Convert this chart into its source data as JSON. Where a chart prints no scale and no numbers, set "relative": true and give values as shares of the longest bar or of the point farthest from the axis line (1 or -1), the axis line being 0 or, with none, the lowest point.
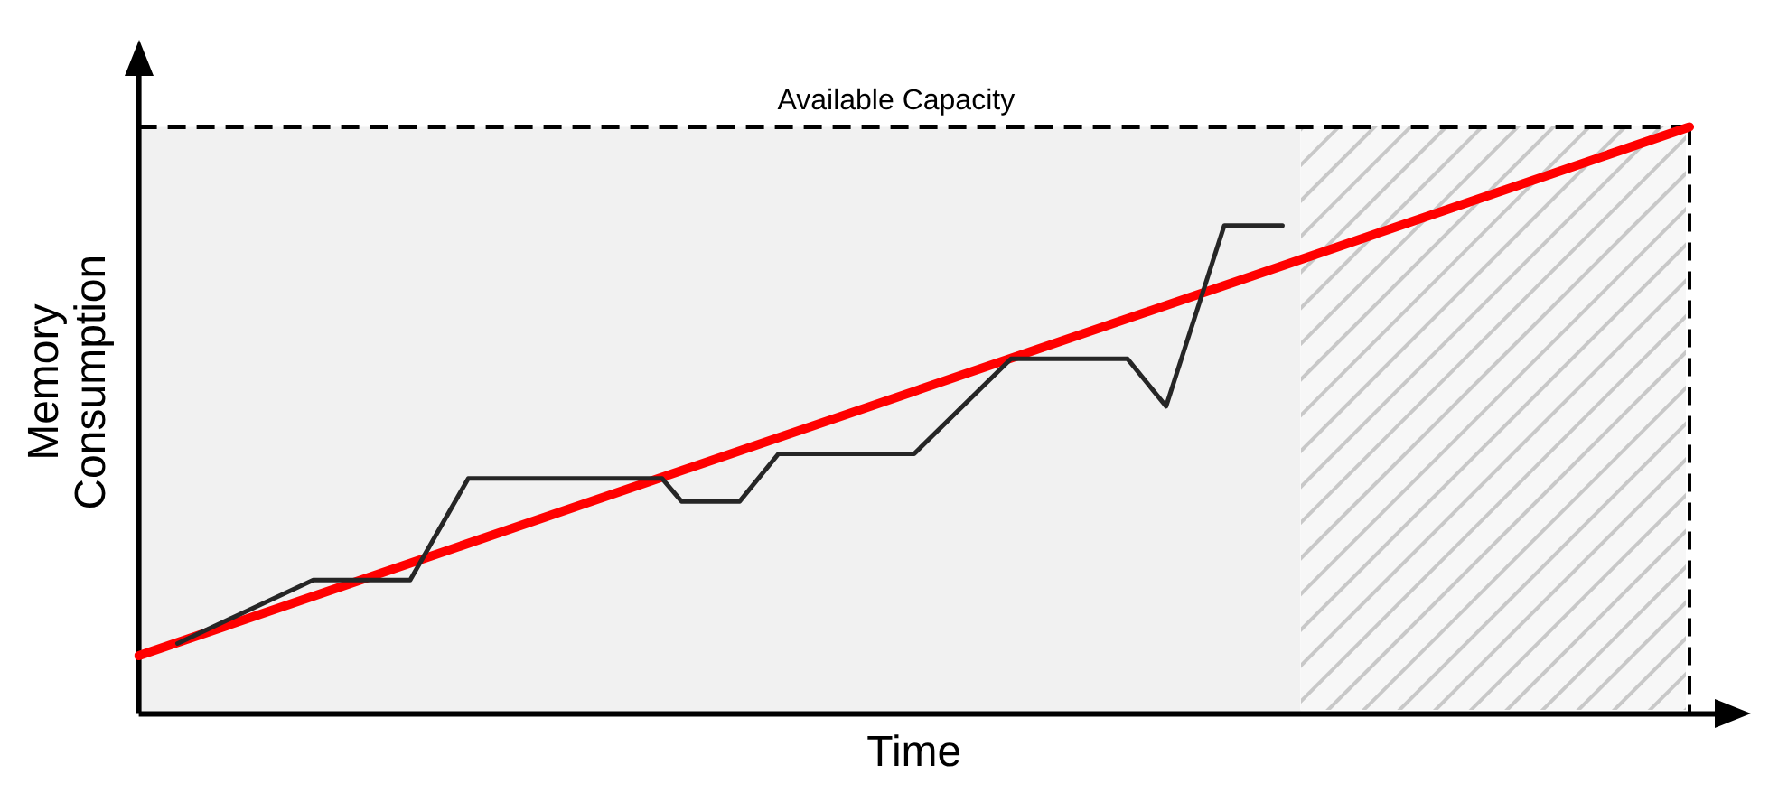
{
  "chart_data": {
    "type": "line",
    "relative": true,
    "xlabel": "Time",
    "ylabel": "Memory Consumption",
    "categories": [
      null,
      null,
      null,
      null,
      null,
      null,
      null,
      null,
      null,
      null,
      null,
      null,
      null,
      null,
      null,
      null,
      null,
      null,
      null,
      null,
      null,
      null,
      null,
      null,
      null,
      null,
      null,
      null,
      null,
      null,
      null,
      null,
      null,
      null,
      null,
      null,
      null,
      null,
      null,
      null,
      null,
      null,
      null,
      null,
      null,
      null,
      null,
      null,
      null,
      null,
      null,
      null,
      null,
      null,
      null,
      null,
      null,
      null,
      null,
      null,
      null,
      null,
      null,
      null,
      null,
      null,
      null,
      null,
      null,
      null,
      null,
      null,
      null,
      null,
      null,
      null,
      null,
      null,
      null,
      null,
      null
    ],
    "series": [
      {
        "color": "#262626",
        "values": [
          null,
          null,
          0.12,
          null,
          null,
          null,
          null,
          null,
          null,
          0.228,
          null,
          null,
          null,
          null,
          0.228,
          null,
          null,
          0.401,
          null,
          null,
          null,
          null,
          null,
          null,
          null,
          null,
          null,
          0.401,
          0.362,
          null,
          null,
          0.362,
          null,
          0.443,
          null,
          null,
          null,
          null,
          null,
          null,
          0.443,
          null,
          null,
          null,
          null,
          0.605,
          null,
          null,
          null,
          null,
          null,
          0.605,
          null,
          0.524,
          null,
          null,
          0.832,
          null,
          null,
          0.832,
          null,
          null,
          null,
          null,
          null,
          null,
          null,
          null,
          null,
          null,
          null,
          null,
          null,
          null,
          null,
          null,
          null,
          null,
          null,
          null,
          null
        ]
      },
      {
        "color": "#ff0000",
        "values": [
          0.099,
          null,
          null,
          null,
          null,
          null,
          null,
          null,
          null,
          null,
          null,
          null,
          null,
          null,
          null,
          null,
          null,
          null,
          null,
          null,
          null,
          null,
          null,
          null,
          null,
          null,
          null,
          null,
          null,
          null,
          null,
          null,
          null,
          null,
          null,
          null,
          null,
          null,
          null,
          null,
          null,
          null,
          null,
          null,
          null,
          null,
          null,
          null,
          null,
          null,
          null,
          null,
          null,
          null,
          null,
          null,
          null,
          null,
          null,
          null,
          null,
          null,
          null,
          null,
          null,
          null,
          null,
          null,
          null,
          null,
          null,
          null,
          null,
          null,
          null,
          null,
          null,
          null,
          null,
          null,
          1.0
        ]
      }
    ],
    "ref_lines": [
      {
        "axis": "y",
        "value": 1,
        "label": "Available Capacity",
        "color": "#000000",
        "line_style": "dashed"
      }
    ],
    "grid": false,
    "legend": false,
    "marker": "none",
    "line_style": "solid"
  }
}
